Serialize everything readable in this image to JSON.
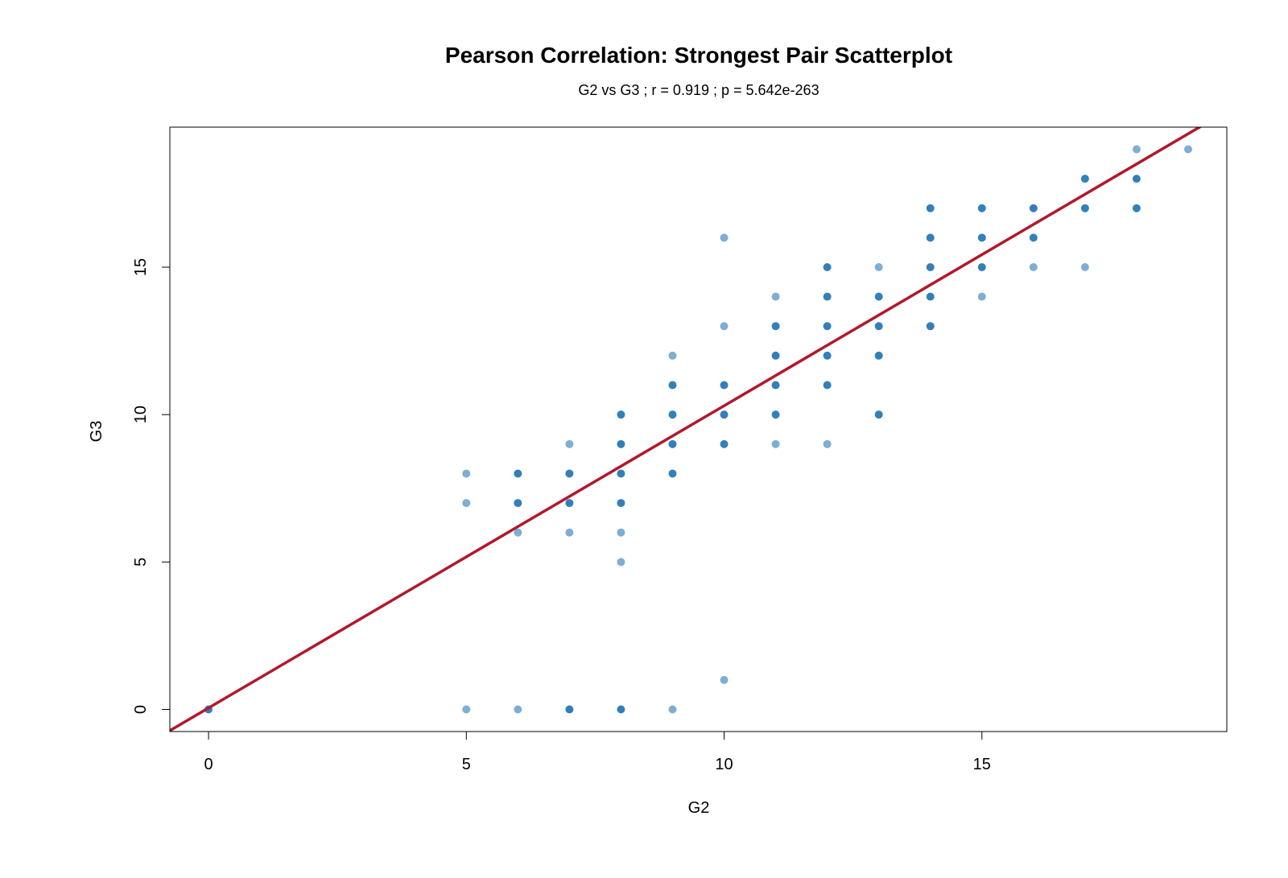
{
  "chart_data": {
    "type": "scatter",
    "title": "Pearson Correlation: Strongest Pair Scatterplot",
    "subtitle": "G2 vs G3 ; r = 0.919 ; p = 5.642e-263",
    "xlabel": "G2",
    "ylabel": "G3",
    "xlim": [
      -0.75,
      19.75
    ],
    "ylim": [
      -0.75,
      19.75
    ],
    "x_ticks": [
      0,
      5,
      10,
      15
    ],
    "y_ticks": [
      0,
      5,
      10,
      15
    ],
    "grid": false,
    "colors": {
      "points": "#2878b5",
      "fit_line": "#b2182b",
      "axis": "#000000"
    },
    "fit_line": {
      "intercept": 0.05,
      "slope": 1.025
    },
    "points": [
      {
        "x": 0,
        "y": 0,
        "dense": true
      },
      {
        "x": 5,
        "y": 8,
        "dense": false
      },
      {
        "x": 5,
        "y": 7,
        "dense": false
      },
      {
        "x": 5,
        "y": 0,
        "dense": false
      },
      {
        "x": 6,
        "y": 8,
        "dense": true
      },
      {
        "x": 6,
        "y": 7,
        "dense": true
      },
      {
        "x": 6,
        "y": 6,
        "dense": false
      },
      {
        "x": 6,
        "y": 0,
        "dense": false
      },
      {
        "x": 7,
        "y": 9,
        "dense": false
      },
      {
        "x": 7,
        "y": 8,
        "dense": true
      },
      {
        "x": 7,
        "y": 7,
        "dense": true
      },
      {
        "x": 7,
        "y": 6,
        "dense": false
      },
      {
        "x": 7,
        "y": 0,
        "dense": true
      },
      {
        "x": 8,
        "y": 10,
        "dense": true
      },
      {
        "x": 8,
        "y": 9,
        "dense": true
      },
      {
        "x": 8,
        "y": 8,
        "dense": true
      },
      {
        "x": 8,
        "y": 7,
        "dense": true
      },
      {
        "x": 8,
        "y": 6,
        "dense": false
      },
      {
        "x": 8,
        "y": 5,
        "dense": false
      },
      {
        "x": 8,
        "y": 0,
        "dense": true
      },
      {
        "x": 9,
        "y": 12,
        "dense": false
      },
      {
        "x": 9,
        "y": 11,
        "dense": true
      },
      {
        "x": 9,
        "y": 10,
        "dense": true
      },
      {
        "x": 9,
        "y": 9,
        "dense": true
      },
      {
        "x": 9,
        "y": 8,
        "dense": true
      },
      {
        "x": 9,
        "y": 0,
        "dense": false
      },
      {
        "x": 10,
        "y": 16,
        "dense": false
      },
      {
        "x": 10,
        "y": 13,
        "dense": false
      },
      {
        "x": 10,
        "y": 11,
        "dense": true
      },
      {
        "x": 10,
        "y": 10,
        "dense": true
      },
      {
        "x": 10,
        "y": 9,
        "dense": true
      },
      {
        "x": 10,
        "y": 1,
        "dense": false
      },
      {
        "x": 11,
        "y": 14,
        "dense": false
      },
      {
        "x": 11,
        "y": 13,
        "dense": true
      },
      {
        "x": 11,
        "y": 12,
        "dense": true
      },
      {
        "x": 11,
        "y": 11,
        "dense": true
      },
      {
        "x": 11,
        "y": 10,
        "dense": true
      },
      {
        "x": 11,
        "y": 9,
        "dense": false
      },
      {
        "x": 12,
        "y": 15,
        "dense": true
      },
      {
        "x": 12,
        "y": 14,
        "dense": true
      },
      {
        "x": 12,
        "y": 13,
        "dense": true
      },
      {
        "x": 12,
        "y": 12,
        "dense": true
      },
      {
        "x": 12,
        "y": 11,
        "dense": true
      },
      {
        "x": 12,
        "y": 9,
        "dense": false
      },
      {
        "x": 13,
        "y": 15,
        "dense": false
      },
      {
        "x": 13,
        "y": 14,
        "dense": true
      },
      {
        "x": 13,
        "y": 13,
        "dense": true
      },
      {
        "x": 13,
        "y": 12,
        "dense": true
      },
      {
        "x": 13,
        "y": 10,
        "dense": true
      },
      {
        "x": 14,
        "y": 17,
        "dense": true
      },
      {
        "x": 14,
        "y": 16,
        "dense": true
      },
      {
        "x": 14,
        "y": 15,
        "dense": true
      },
      {
        "x": 14,
        "y": 14,
        "dense": true
      },
      {
        "x": 14,
        "y": 13,
        "dense": true
      },
      {
        "x": 15,
        "y": 17,
        "dense": true
      },
      {
        "x": 15,
        "y": 16,
        "dense": true
      },
      {
        "x": 15,
        "y": 15,
        "dense": true
      },
      {
        "x": 15,
        "y": 14,
        "dense": false
      },
      {
        "x": 16,
        "y": 17,
        "dense": true
      },
      {
        "x": 16,
        "y": 16,
        "dense": true
      },
      {
        "x": 16,
        "y": 15,
        "dense": false
      },
      {
        "x": 17,
        "y": 18,
        "dense": true
      },
      {
        "x": 17,
        "y": 17,
        "dense": true
      },
      {
        "x": 17,
        "y": 15,
        "dense": false
      },
      {
        "x": 18,
        "y": 19,
        "dense": false
      },
      {
        "x": 18,
        "y": 18,
        "dense": true
      },
      {
        "x": 18,
        "y": 17,
        "dense": true
      },
      {
        "x": 19,
        "y": 19,
        "dense": false
      }
    ]
  }
}
